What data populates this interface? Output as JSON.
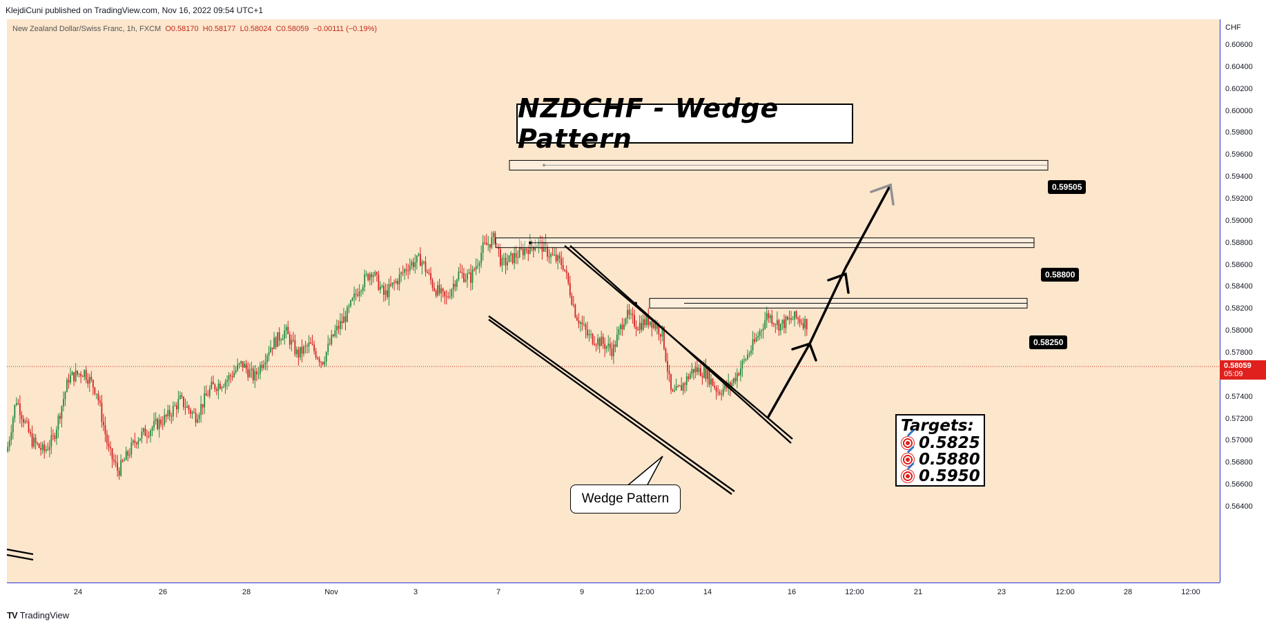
{
  "header": {
    "published_line": "KlejdiCuni published on TradingView.com, Nov 16, 2022 09:54 UTC+1"
  },
  "legend": {
    "symbol": "New Zealand Dollar/Swiss Franc, 1h, FXCM",
    "open": "O0.58170",
    "high": "H0.58177",
    "low": "L0.58024",
    "close": "C0.58059",
    "change": "−0.00111 (−0.19%)"
  },
  "chart_title": "NZDCHF - Wedge Pattern",
  "current_price": {
    "value": "0.58059",
    "countdown": "05:09"
  },
  "levels": [
    {
      "label": "0.59505",
      "value": 0.59505
    },
    {
      "label": "0.58800",
      "value": 0.588
    },
    {
      "label": "0.58250",
      "value": 0.5825
    }
  ],
  "targets": {
    "title": "Targets:",
    "items": [
      "0.5825",
      "0.5880",
      "0.5950"
    ]
  },
  "callout": "Wedge Pattern",
  "footer": {
    "brand": "TradingView",
    "brand_mark": "TV"
  },
  "colors": {
    "background": "#fce6cc",
    "up": "#1f8a3a",
    "down": "#d32020",
    "axis_line": "#2a2ee0"
  },
  "chart_data": {
    "type": "candlestick",
    "title": "NZDCHF - Wedge Pattern",
    "y_unit": "CHF",
    "ylim": [
      0.5632,
      0.6079
    ],
    "y_ticks": [
      "0.60600",
      "0.60400",
      "0.60200",
      "0.60000",
      "0.59800",
      "0.59600",
      "0.59400",
      "0.59200",
      "0.59000",
      "0.58800",
      "0.58600",
      "0.58400",
      "0.58200",
      "0.58000",
      "0.57800",
      "0.57600",
      "0.57400",
      "0.57200",
      "0.57000",
      "0.56800",
      "0.56600",
      "0.56400"
    ],
    "x_ticks": [
      "24",
      "26",
      "28",
      "Nov",
      "3",
      "7",
      "9",
      "12:00",
      "14",
      "16",
      "12:00",
      "21",
      "23",
      "12:00",
      "28",
      "12:00"
    ],
    "price_path": [
      [
        0,
        0.569
      ],
      [
        0.3,
        0.5738
      ],
      [
        0.8,
        0.57
      ],
      [
        1.2,
        0.569
      ],
      [
        1.5,
        0.5702
      ],
      [
        2.0,
        0.5757
      ],
      [
        2.5,
        0.5763
      ],
      [
        2.9,
        0.5745
      ],
      [
        3.3,
        0.569
      ],
      [
        3.6,
        0.5672
      ],
      [
        4.2,
        0.5702
      ],
      [
        4.7,
        0.5712
      ],
      [
        5.2,
        0.5722
      ],
      [
        5.6,
        0.5737
      ],
      [
        6.1,
        0.5722
      ],
      [
        6.6,
        0.5748
      ],
      [
        7.1,
        0.5755
      ],
      [
        7.6,
        0.577
      ],
      [
        8.0,
        0.5757
      ],
      [
        8.5,
        0.5785
      ],
      [
        9.0,
        0.58
      ],
      [
        9.4,
        0.5778
      ],
      [
        9.8,
        0.5787
      ],
      [
        10.2,
        0.5772
      ],
      [
        10.6,
        0.5798
      ],
      [
        11.0,
        0.5815
      ],
      [
        11.4,
        0.584
      ],
      [
        11.8,
        0.5855
      ],
      [
        12.2,
        0.5832
      ],
      [
        12.6,
        0.5845
      ],
      [
        13.0,
        0.586
      ],
      [
        13.4,
        0.5865
      ],
      [
        13.8,
        0.584
      ],
      [
        14.2,
        0.5828
      ],
      [
        14.6,
        0.5852
      ],
      [
        15.0,
        0.5848
      ],
      [
        15.4,
        0.5875
      ],
      [
        15.8,
        0.5885
      ],
      [
        16.0,
        0.586
      ],
      [
        16.4,
        0.5867
      ],
      [
        16.8,
        0.5875
      ],
      [
        17.2,
        0.588
      ],
      [
        17.6,
        0.5868
      ],
      [
        18.0,
        0.586
      ],
      [
        18.4,
        0.5815
      ],
      [
        18.8,
        0.5795
      ],
      [
        19.2,
        0.579
      ],
      [
        19.6,
        0.5782
      ],
      [
        20.0,
        0.5815
      ],
      [
        20.4,
        0.5805
      ],
      [
        20.8,
        0.581
      ],
      [
        21.2,
        0.5798
      ],
      [
        21.5,
        0.574
      ],
      [
        21.8,
        0.5748
      ],
      [
        22.2,
        0.5765
      ],
      [
        22.6,
        0.5762
      ],
      [
        23.0,
        0.5745
      ],
      [
        23.4,
        0.575
      ],
      [
        23.8,
        0.577
      ],
      [
        24.2,
        0.579
      ],
      [
        24.6,
        0.5815
      ],
      [
        25.0,
        0.5805
      ],
      [
        25.5,
        0.5812
      ],
      [
        25.9,
        0.5806
      ]
    ]
  }
}
